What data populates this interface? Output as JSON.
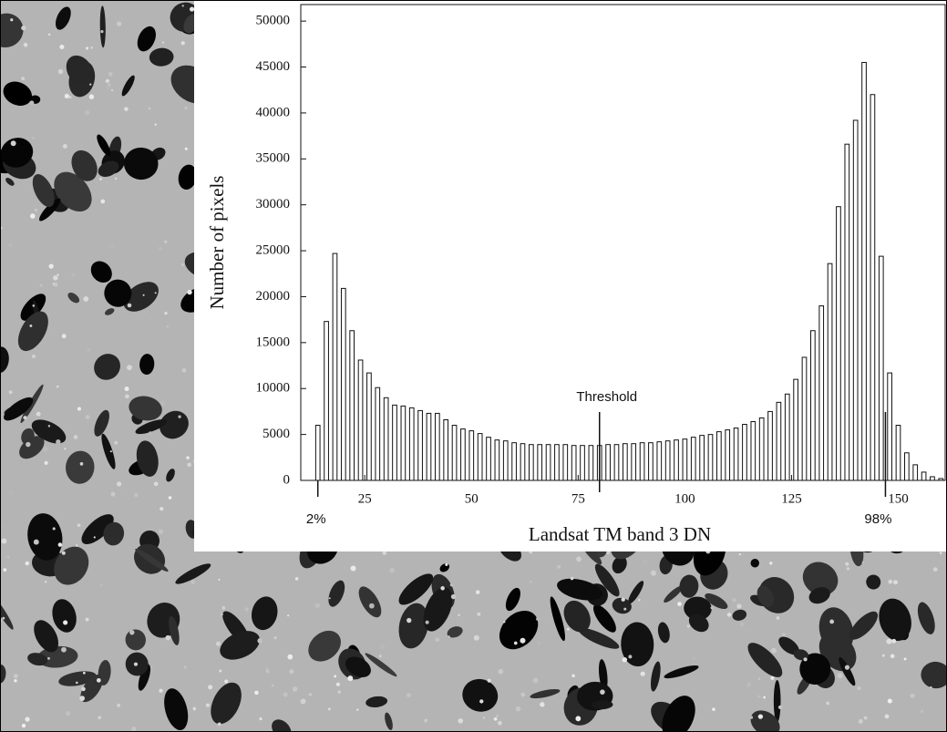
{
  "chart_data": {
    "type": "histogram",
    "x_label": "Landsat TM band 3 DN",
    "y_label": "Number of pixels",
    "bins": [
      13,
      15,
      17,
      19,
      21,
      23,
      25,
      27,
      29,
      31,
      33,
      35,
      37,
      39,
      41,
      43,
      45,
      47,
      49,
      51,
      53,
      55,
      57,
      59,
      61,
      63,
      65,
      67,
      69,
      71,
      73,
      75,
      77,
      79,
      81,
      83,
      85,
      87,
      89,
      91,
      93,
      95,
      97,
      99,
      101,
      103,
      105,
      107,
      109,
      111,
      113,
      115,
      117,
      119,
      121,
      123,
      125,
      127,
      129,
      131,
      133,
      135,
      137,
      139,
      141,
      143,
      145,
      147,
      149,
      151,
      153,
      155,
      157,
      159,
      161
    ],
    "values": [
      6000,
      17300,
      24700,
      20900,
      16300,
      13100,
      11700,
      10100,
      9000,
      8200,
      8100,
      7900,
      7600,
      7300,
      7300,
      6600,
      6000,
      5600,
      5400,
      5100,
      4700,
      4400,
      4300,
      4100,
      4000,
      3900,
      3900,
      3900,
      3900,
      3900,
      3800,
      3800,
      3800,
      3800,
      3900,
      3900,
      4000,
      4000,
      4100,
      4100,
      4200,
      4300,
      4400,
      4500,
      4700,
      4900,
      5000,
      5300,
      5500,
      5700,
      6100,
      6400,
      6800,
      7500,
      8500,
      9400,
      11000,
      13400,
      16300,
      19000,
      23600,
      29800,
      36600,
      39200,
      45500,
      42000,
      24400,
      11700,
      6000,
      3000,
      1700,
      900,
      400,
      200
    ],
    "color": "#ffffff",
    "edge_color": "#111111",
    "xlim": [
      10,
      161
    ],
    "xticks": [
      25,
      50,
      75,
      100,
      125,
      150
    ],
    "ylim": [
      0,
      51800
    ],
    "yticks": [
      0,
      5000,
      10000,
      15000,
      20000,
      25000,
      30000,
      35000,
      40000,
      45000,
      50000
    ],
    "annotations": [
      {
        "text": "Threshold",
        "x": 80
      },
      {
        "text": "2%",
        "x": 14
      },
      {
        "text": "98%",
        "x": 147
      }
    ]
  }
}
